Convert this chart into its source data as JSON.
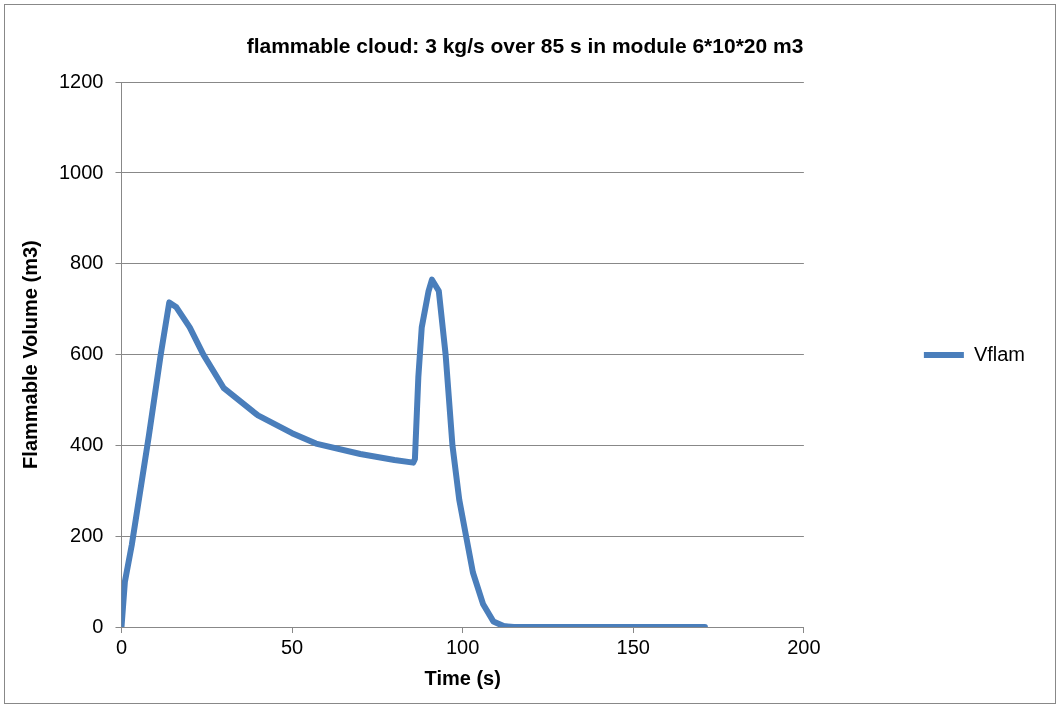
{
  "chart_data": {
    "type": "line",
    "title": "flammable cloud: 3 kg/s over 85 s in module 6*10*20 m3",
    "xlabel": "Time (s)",
    "ylabel": "Flammable Volume (m3)",
    "xlim": [
      0,
      200
    ],
    "xticks": [
      0,
      50,
      100,
      150,
      200
    ],
    "ylim": [
      0,
      1200
    ],
    "yticks": [
      0,
      200,
      400,
      600,
      800,
      1000,
      1200
    ],
    "grid": "y",
    "legend": "right",
    "marker": "none",
    "line_style": "solid",
    "series": [
      {
        "name": "Vflam",
        "color": "#4a7ebb",
        "x": [
          0,
          1,
          3,
          8,
          11.5,
          14,
          16,
          20,
          24,
          30,
          40,
          50,
          57,
          70,
          80,
          85.5,
          86,
          87,
          88,
          90,
          91,
          93,
          95,
          97,
          99,
          101,
          103,
          106,
          109,
          112,
          115,
          171
        ],
        "values": [
          0,
          100,
          180,
          420,
          600,
          715,
          705,
          660,
          600,
          526,
          466,
          427,
          404,
          381,
          368,
          362,
          370,
          550,
          660,
          740,
          765,
          740,
          600,
          400,
          280,
          200,
          120,
          50,
          12,
          2,
          0,
          0
        ]
      }
    ]
  }
}
